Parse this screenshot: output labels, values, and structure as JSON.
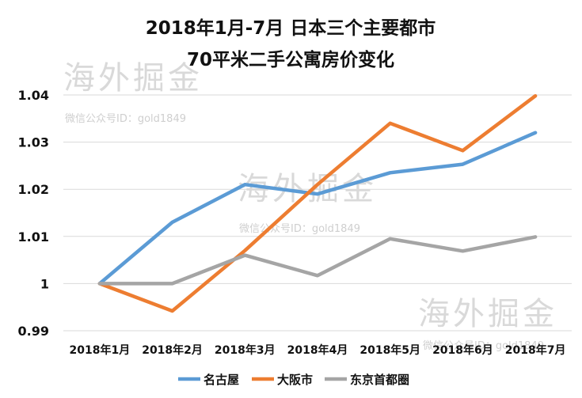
{
  "chart_data": {
    "type": "line",
    "title_lines": [
      "2018年1月-7月 日本三个主要都市",
      "70平米二手公寓房价变化"
    ],
    "categories": [
      "2018年1月",
      "2018年2月",
      "2018年3月",
      "2018年4月",
      "2018年5月",
      "2018年6月",
      "2018年7月"
    ],
    "series": [
      {
        "name": "名古屋",
        "color": "#5B9BD5",
        "values": [
          1.0,
          1.013,
          1.021,
          1.019,
          1.0235,
          1.0253,
          1.032
        ]
      },
      {
        "name": "大阪市",
        "color": "#ED7D31",
        "values": [
          1.0,
          0.9942,
          1.007,
          1.021,
          1.034,
          1.0282,
          1.0398
        ]
      },
      {
        "name": "东京首都圈",
        "color": "#A5A5A5",
        "values": [
          1.0,
          1.0,
          1.006,
          1.0017,
          1.0095,
          1.0069,
          1.0099
        ]
      }
    ],
    "yticks": [
      "0.99",
      "1",
      "1.01",
      "1.02",
      "1.03",
      "1.04"
    ],
    "ylim": [
      0.99,
      1.04
    ],
    "grid": true,
    "legend": "bottom"
  },
  "watermarks": [
    {
      "text": "海外掘金",
      "sub": "微信公众号ID：gold1849"
    },
    {
      "text": "海外掘金",
      "sub": "微信公众号ID：gold1849"
    },
    {
      "text": "海外掘金",
      "sub": "微信公众号ID：gold1849"
    }
  ]
}
